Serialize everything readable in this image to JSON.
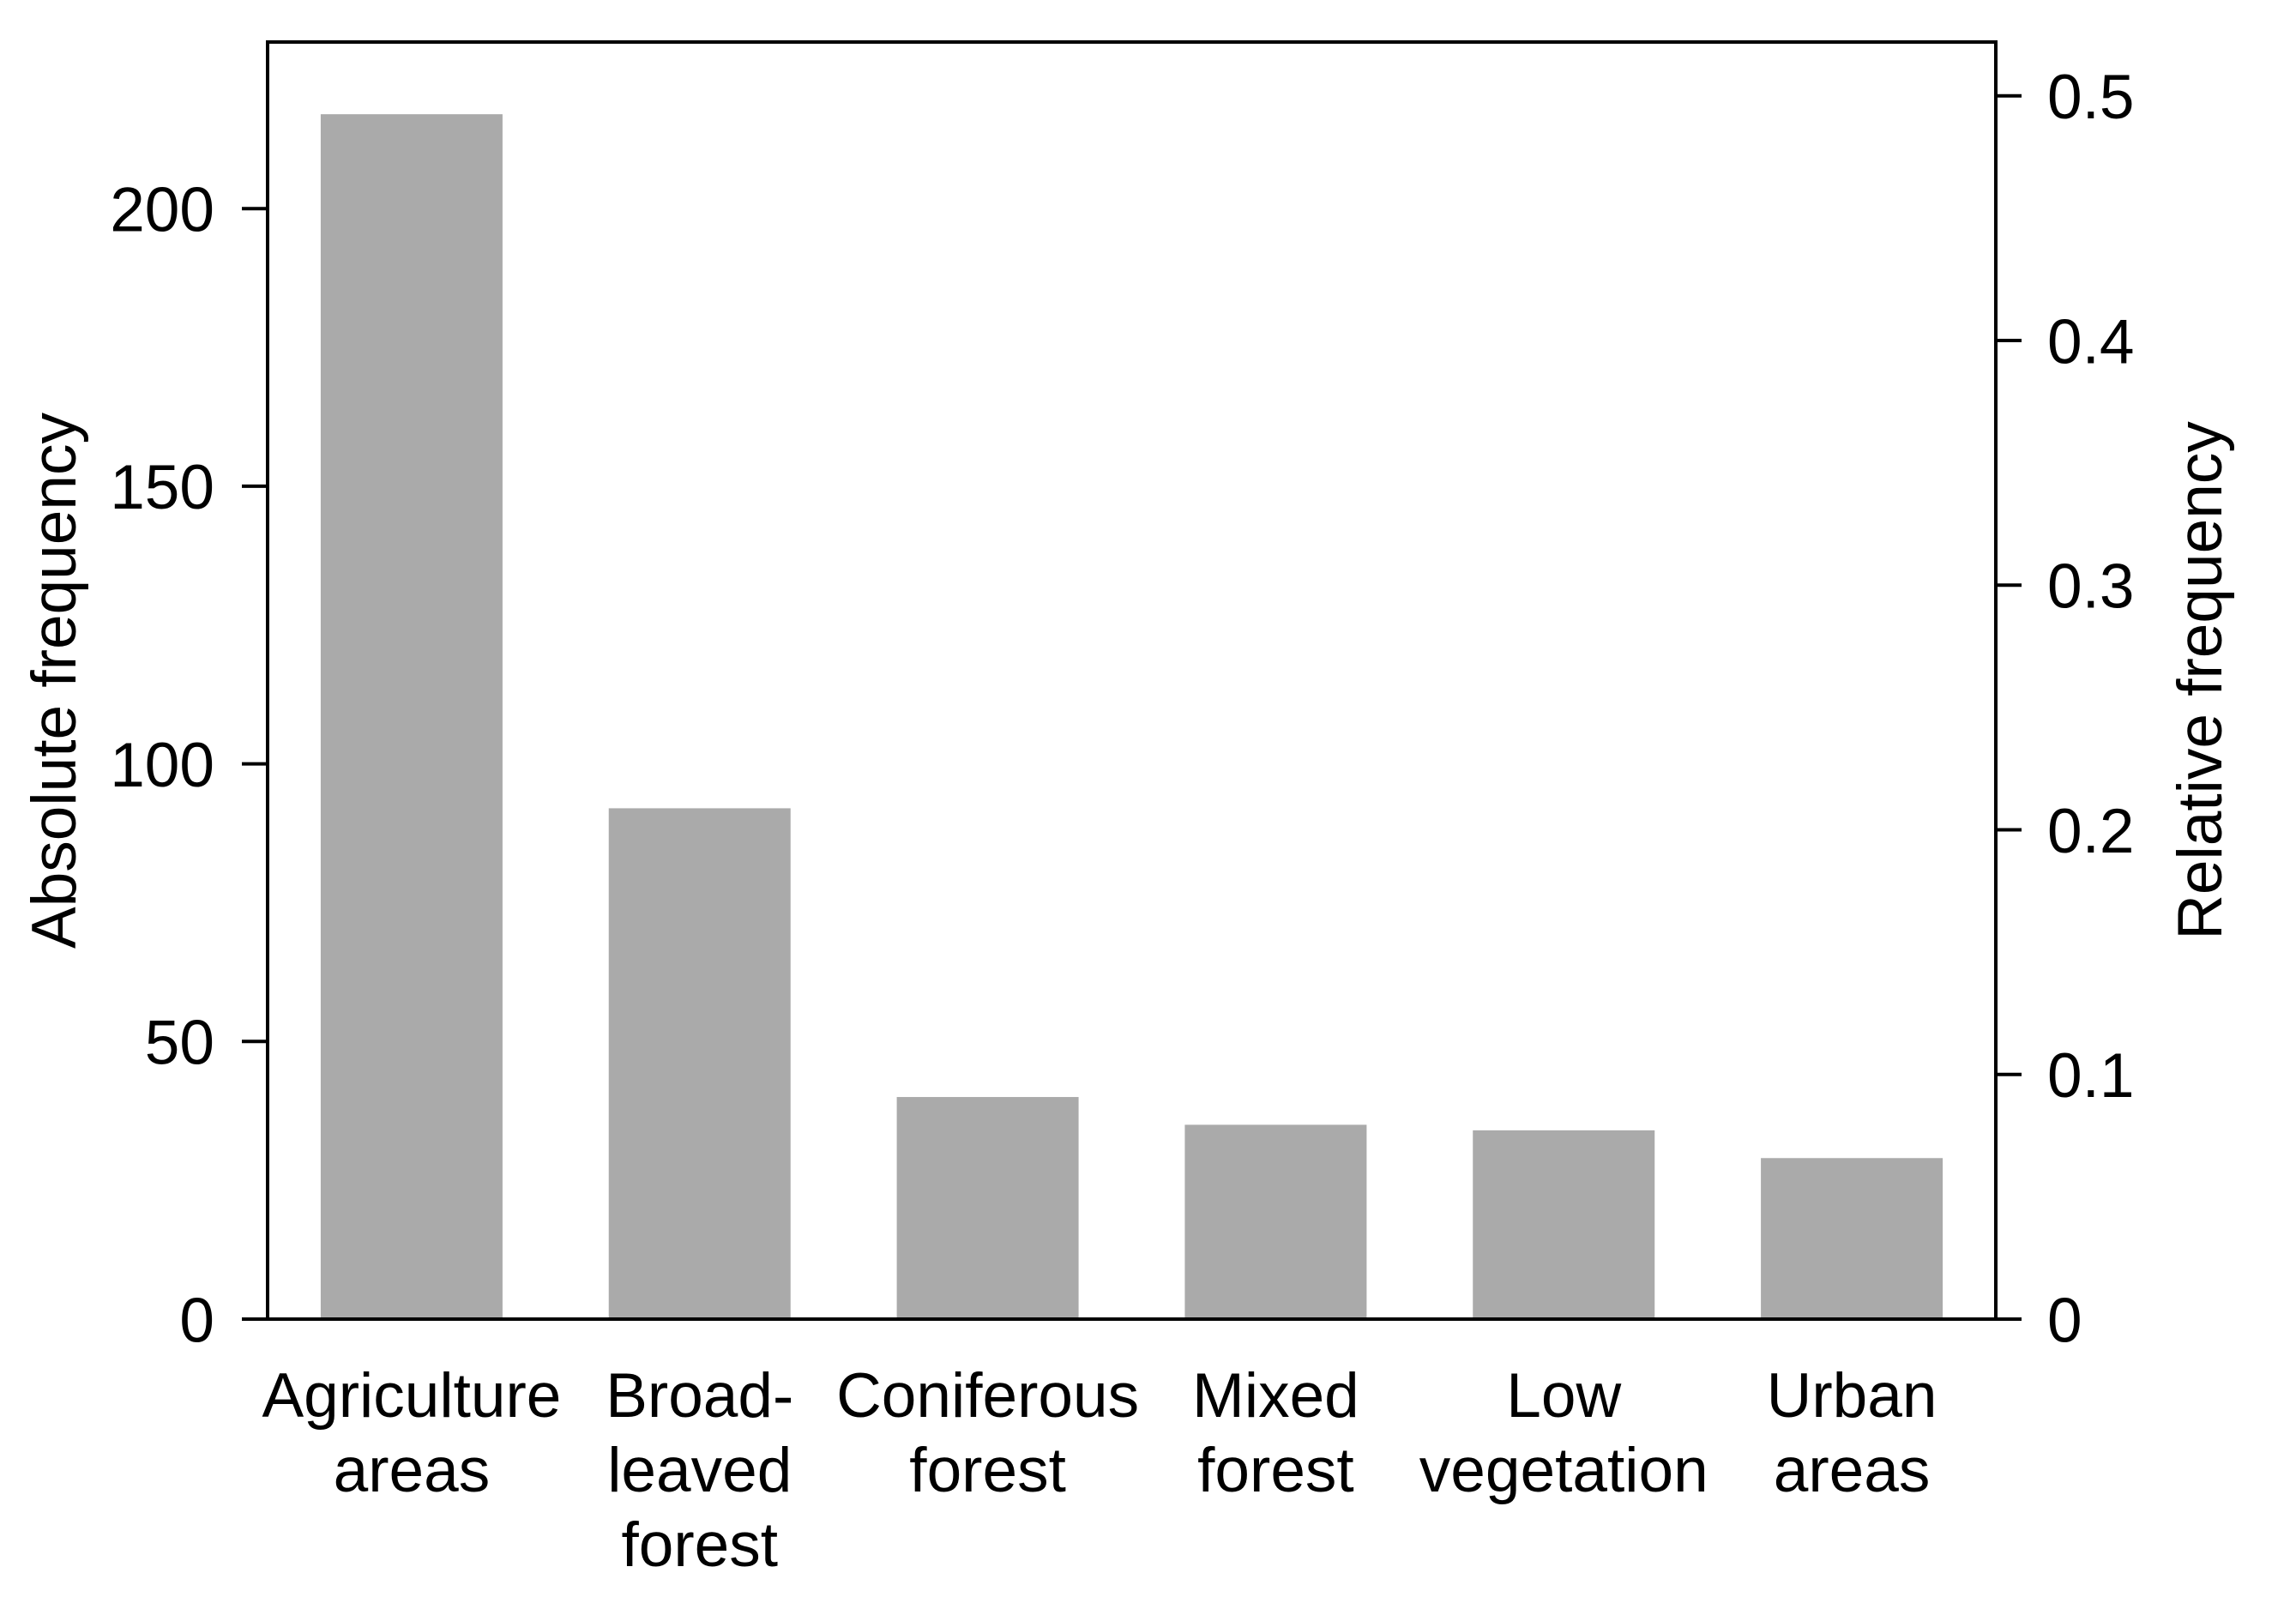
{
  "chart_data": {
    "type": "bar",
    "title": "",
    "categories": [
      "Agriculture areas",
      "Broad-leaved forest",
      "Coniferous forest",
      "Mixed forest",
      "Low vegetation",
      "Urban areas"
    ],
    "category_lines": [
      [
        "Agriculture",
        "areas"
      ],
      [
        "Broad-",
        "leaved",
        "forest"
      ],
      [
        "Coniferous",
        "forest"
      ],
      [
        "Mixed",
        "forest"
      ],
      [
        "Low",
        "vegetation"
      ],
      [
        "Urban",
        "areas"
      ]
    ],
    "values": [
      217,
      92,
      40,
      35,
      34,
      29
    ],
    "xlabel": "",
    "ylabel_left": "Absolute frequency",
    "ylabel_right": "Relative frequency",
    "left_axis": {
      "ticks": [
        0,
        50,
        100,
        150,
        200
      ],
      "tick_labels": [
        "0",
        "50",
        "100",
        "150",
        "200"
      ],
      "ylim": [
        0,
        230
      ]
    },
    "right_axis": {
      "ticks": [
        0,
        0.1,
        0.2,
        0.3,
        0.4,
        0.5
      ],
      "tick_labels": [
        "0",
        "0.1",
        "0.2",
        "0.3",
        "0.4",
        "0.5"
      ],
      "ylim": [
        0,
        0.522
      ]
    },
    "grid": false,
    "legend_position": "none",
    "bar_color": "#aaaaaa",
    "axis_color": "#000000",
    "background_color": "#ffffff"
  }
}
